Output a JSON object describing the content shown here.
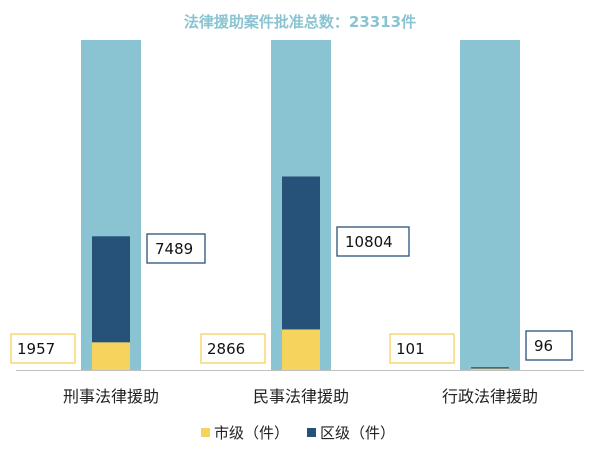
{
  "colors": {
    "total": "#8ac4d2",
    "city": "#f6d35c",
    "district": "#26527a",
    "title": "#8ac4d2",
    "axis": "#bfbfbf",
    "city_box_border": "#f6d35c",
    "district_box_border": "#26527a"
  },
  "chart_data": {
    "type": "bar",
    "title": "法律援助案件批准总数：23313件",
    "categories": [
      "刑事法律援助",
      "民事法律援助",
      "行政法律援助"
    ],
    "series": [
      {
        "name": "市级（件）",
        "values": [
          1957,
          2866,
          101
        ]
      },
      {
        "name": "区级（件）",
        "values": [
          7489,
          10804,
          96
        ]
      }
    ],
    "value_labels": {
      "city": [
        "1957",
        "2866",
        "101"
      ],
      "district": [
        "7489",
        "10804",
        "96"
      ]
    },
    "stacked": true,
    "background_bars": "full-height total bar behind each category",
    "ylim": [
      0,
      23313
    ],
    "grid": false,
    "legend_position": "bottom"
  }
}
